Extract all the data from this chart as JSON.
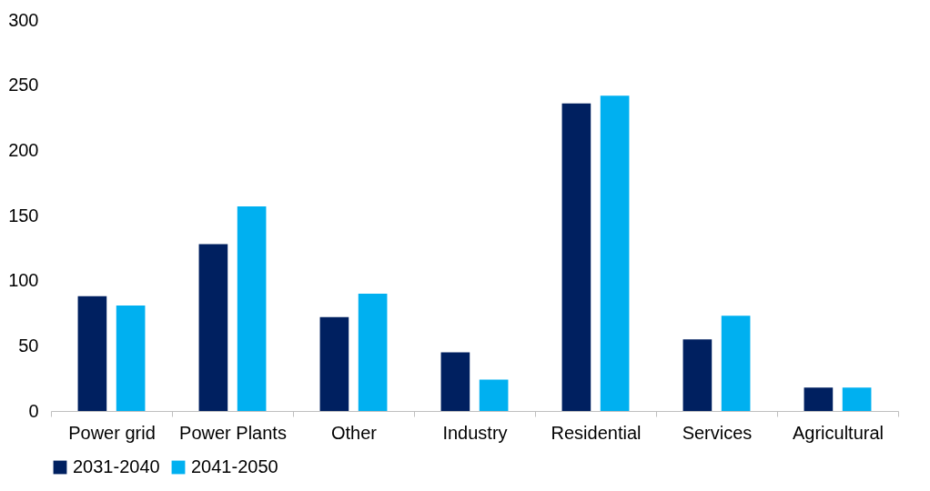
{
  "chart_data": {
    "type": "bar",
    "categories": [
      "Power grid",
      "Power Plants",
      "Other",
      "Industry",
      "Residential",
      "Services",
      "Agricultural"
    ],
    "series": [
      {
        "name": "2031-2040",
        "color": "#002060",
        "values": [
          88,
          128,
          72,
          45,
          236,
          55,
          18
        ]
      },
      {
        "name": "2041-2050",
        "color": "#00b0f0",
        "values": [
          81,
          157,
          90,
          24,
          242,
          73,
          18
        ]
      }
    ],
    "ylim": [
      0,
      300
    ],
    "yticks": [
      0,
      50,
      100,
      150,
      200,
      250,
      300
    ],
    "grid": false,
    "legend": "bottom"
  }
}
